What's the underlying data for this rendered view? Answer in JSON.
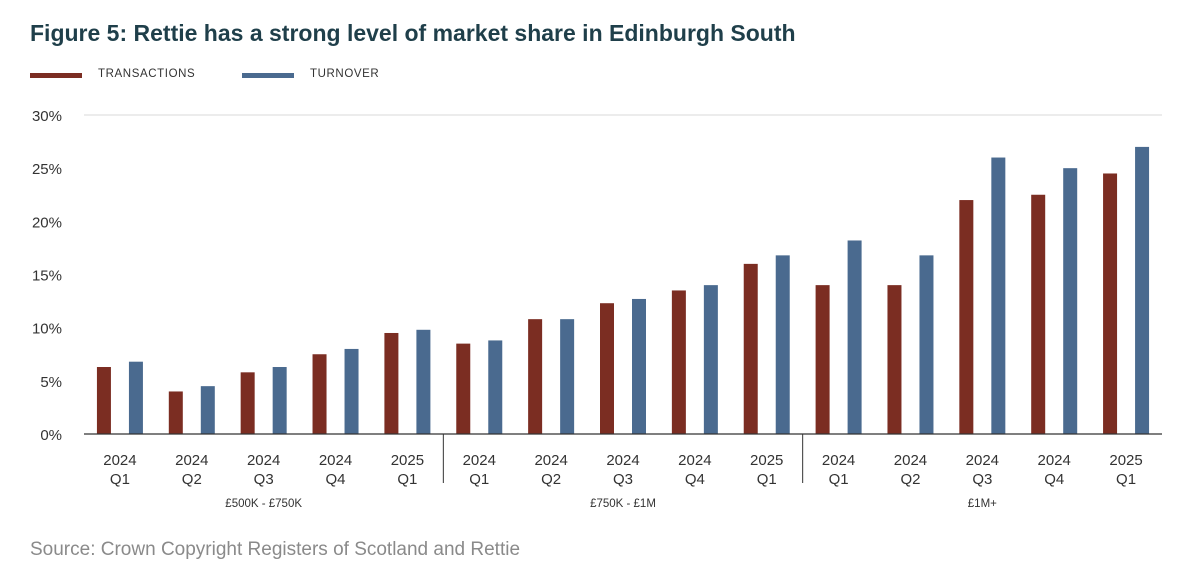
{
  "title": "Figure 5: Rettie has a strong level of market share in Edinburgh South",
  "source": "Source: Crown Copyright Registers of Scotland and Rettie",
  "colors": {
    "transactions": "#7b2d22",
    "turnover": "#4a6a8f",
    "axis": "#333333",
    "grid": "#d9d9d9"
  },
  "chart_data": {
    "type": "bar",
    "title": "Figure 5: Rettie has a strong level of market share in Edinburgh South",
    "xlabel": "",
    "ylabel": "",
    "ylim": [
      0,
      30
    ],
    "yticks": [
      "0%",
      "5%",
      "10%",
      "15%",
      "20%",
      "25%",
      "30%"
    ],
    "yticks_values": [
      0,
      5,
      10,
      15,
      20,
      25,
      30
    ],
    "grid": "top-line-only",
    "legend": "top-left",
    "groups": [
      {
        "label": "£500K - £750K",
        "categories": [
          {
            "year": "2024",
            "quarter": "Q1"
          },
          {
            "year": "2024",
            "quarter": "Q2"
          },
          {
            "year": "2024",
            "quarter": "Q3"
          },
          {
            "year": "2024",
            "quarter": "Q4"
          },
          {
            "year": "2025",
            "quarter": "Q1"
          }
        ]
      },
      {
        "label": "£750K - £1M",
        "categories": [
          {
            "year": "2024",
            "quarter": "Q1"
          },
          {
            "year": "2024",
            "quarter": "Q2"
          },
          {
            "year": "2024",
            "quarter": "Q3"
          },
          {
            "year": "2024",
            "quarter": "Q4"
          },
          {
            "year": "2025",
            "quarter": "Q1"
          }
        ]
      },
      {
        "label": "£1M+",
        "categories": [
          {
            "year": "2024",
            "quarter": "Q1"
          },
          {
            "year": "2024",
            "quarter": "Q2"
          },
          {
            "year": "2024",
            "quarter": "Q3"
          },
          {
            "year": "2024",
            "quarter": "Q4"
          },
          {
            "year": "2025",
            "quarter": "Q1"
          }
        ]
      }
    ],
    "series": [
      {
        "name": "TRANSACTIONS",
        "values": [
          6.3,
          4.0,
          5.8,
          7.5,
          9.5,
          8.5,
          10.8,
          12.3,
          13.5,
          16.0,
          14.0,
          14.0,
          22.0,
          22.5,
          24.5
        ]
      },
      {
        "name": "TURNOVER",
        "values": [
          6.8,
          4.5,
          6.3,
          8.0,
          9.8,
          8.8,
          10.8,
          12.7,
          14.0,
          16.8,
          18.2,
          16.8,
          26.0,
          25.0,
          27.0
        ]
      }
    ]
  }
}
